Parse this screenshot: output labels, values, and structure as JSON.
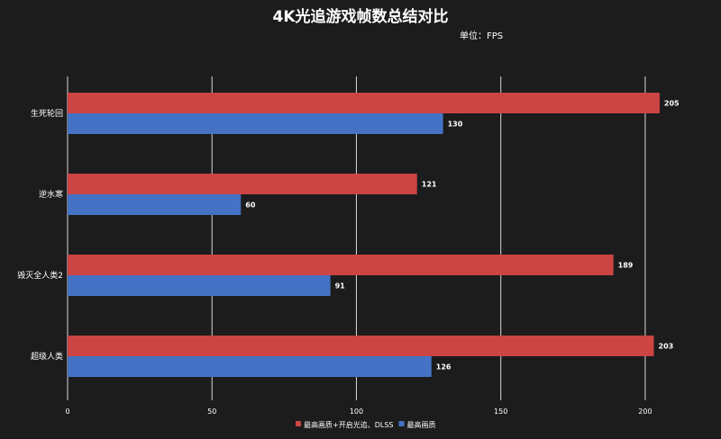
{
  "chart_data": {
    "type": "bar",
    "orientation": "horizontal",
    "title": "4K光追游戏帧数总结对比",
    "subtitle": "单位：FPS",
    "categories": [
      "生死轮回",
      "逆水寒",
      "毁灭全人类2",
      "超级人类"
    ],
    "series": [
      {
        "name": "最高画质+开启光追、DLSS",
        "color": "#cc4444",
        "values": [
          205,
          121,
          189,
          203
        ]
      },
      {
        "name": "最高画质",
        "color": "#4472c4",
        "values": [
          130,
          60,
          91,
          126
        ]
      }
    ],
    "xlim": [
      0,
      220
    ],
    "xticks": [
      0,
      50,
      100,
      150,
      200
    ],
    "grid": true,
    "legend_position": "bottom"
  }
}
